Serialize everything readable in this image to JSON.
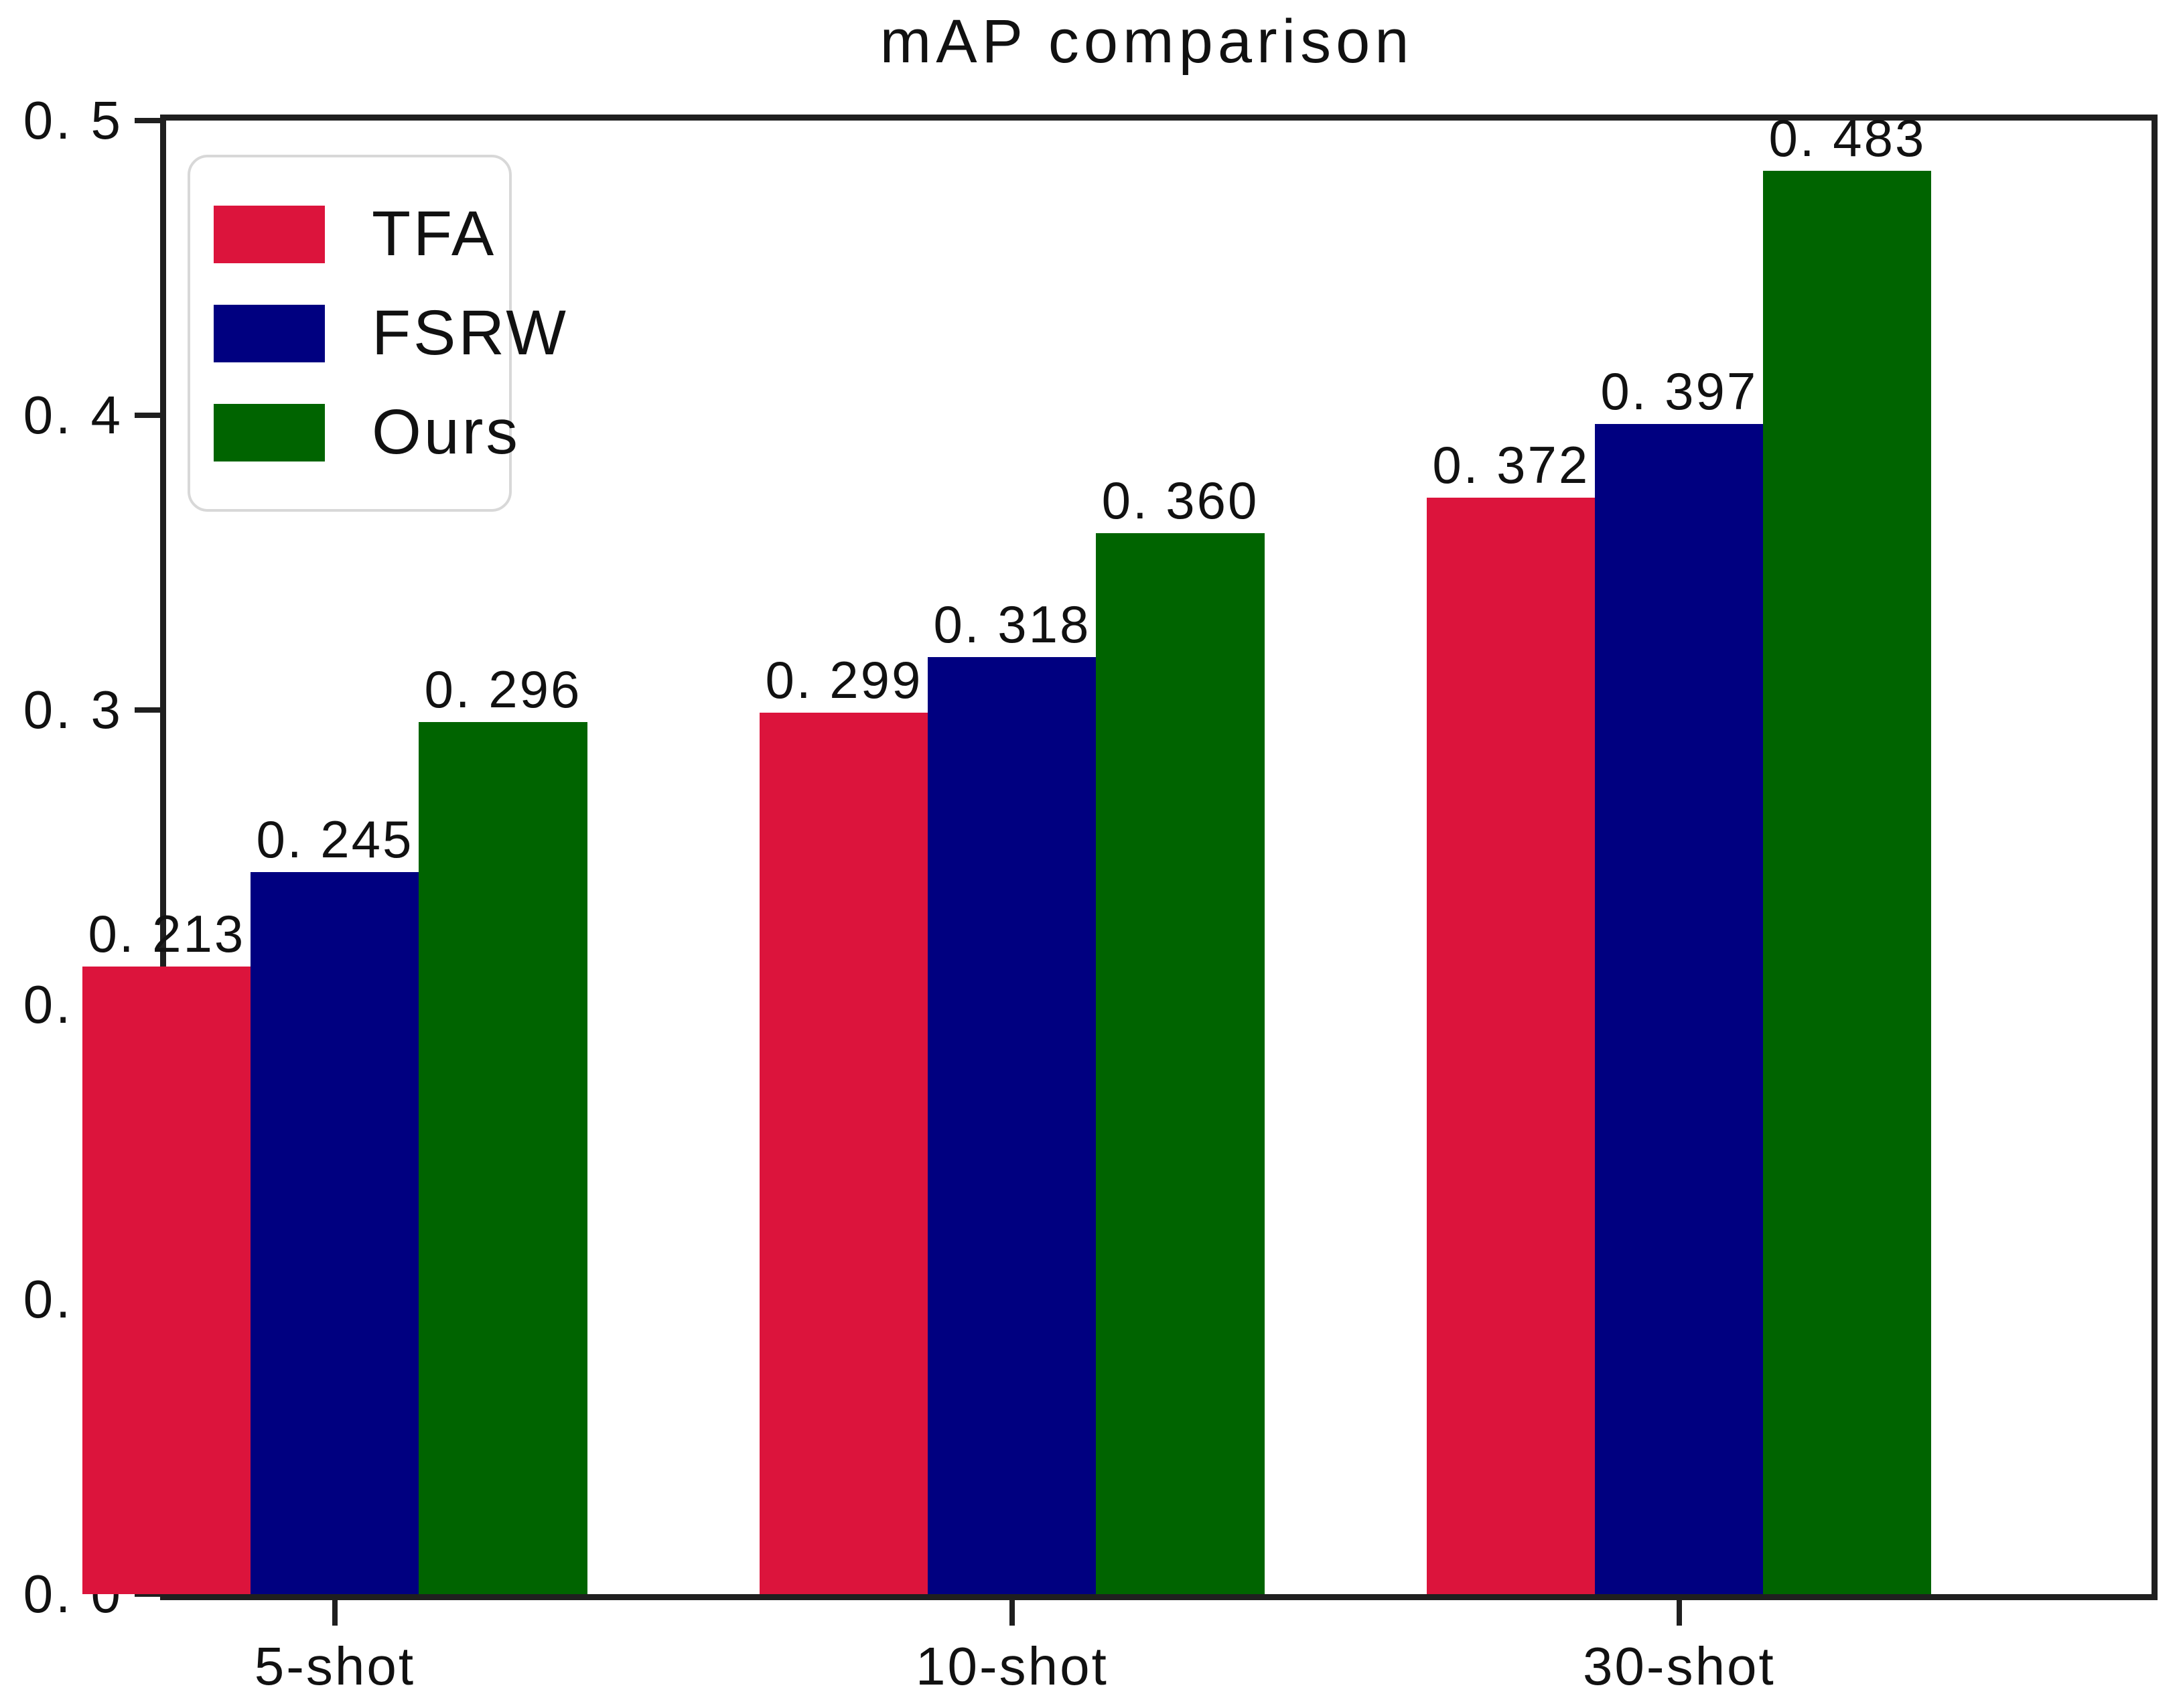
{
  "chart_data": {
    "type": "bar",
    "title": "mAP comparison",
    "categories": [
      "5-shot",
      "10-shot",
      "30-shot"
    ],
    "series": [
      {
        "name": "TFA",
        "color": "#dc143c",
        "values": [
          0.213,
          0.299,
          0.372
        ],
        "value_labels": [
          "0. 213",
          "0. 299",
          "0. 372"
        ]
      },
      {
        "name": "FSRW",
        "color": "#000080",
        "values": [
          0.245,
          0.318,
          0.397
        ],
        "value_labels": [
          "0. 245",
          "0. 318",
          "0. 397"
        ]
      },
      {
        "name": "Ours",
        "color": "#006400",
        "values": [
          0.296,
          0.36,
          0.483
        ],
        "value_labels": [
          "0. 296",
          "0. 360",
          "0. 483"
        ]
      }
    ],
    "xlabel": "",
    "ylabel": "",
    "ylim": [
      0,
      0.5
    ],
    "yticks": [
      {
        "value": 0.0,
        "label": "0. 0"
      },
      {
        "value": 0.1,
        "label": "0. 1"
      },
      {
        "value": 0.2,
        "label": "0. 2"
      },
      {
        "value": 0.3,
        "label": "0. 3"
      },
      {
        "value": 0.4,
        "label": "0. 4"
      },
      {
        "value": 0.5,
        "label": "0. 5"
      }
    ],
    "grid": false,
    "legend_position": "upper left",
    "axis_color": "#1f1f1f",
    "text_color": "#111111",
    "layout": {
      "group_centers_pct": [
        8.5,
        42.61,
        76.21
      ],
      "bar_width_pct": 8.47
    }
  }
}
